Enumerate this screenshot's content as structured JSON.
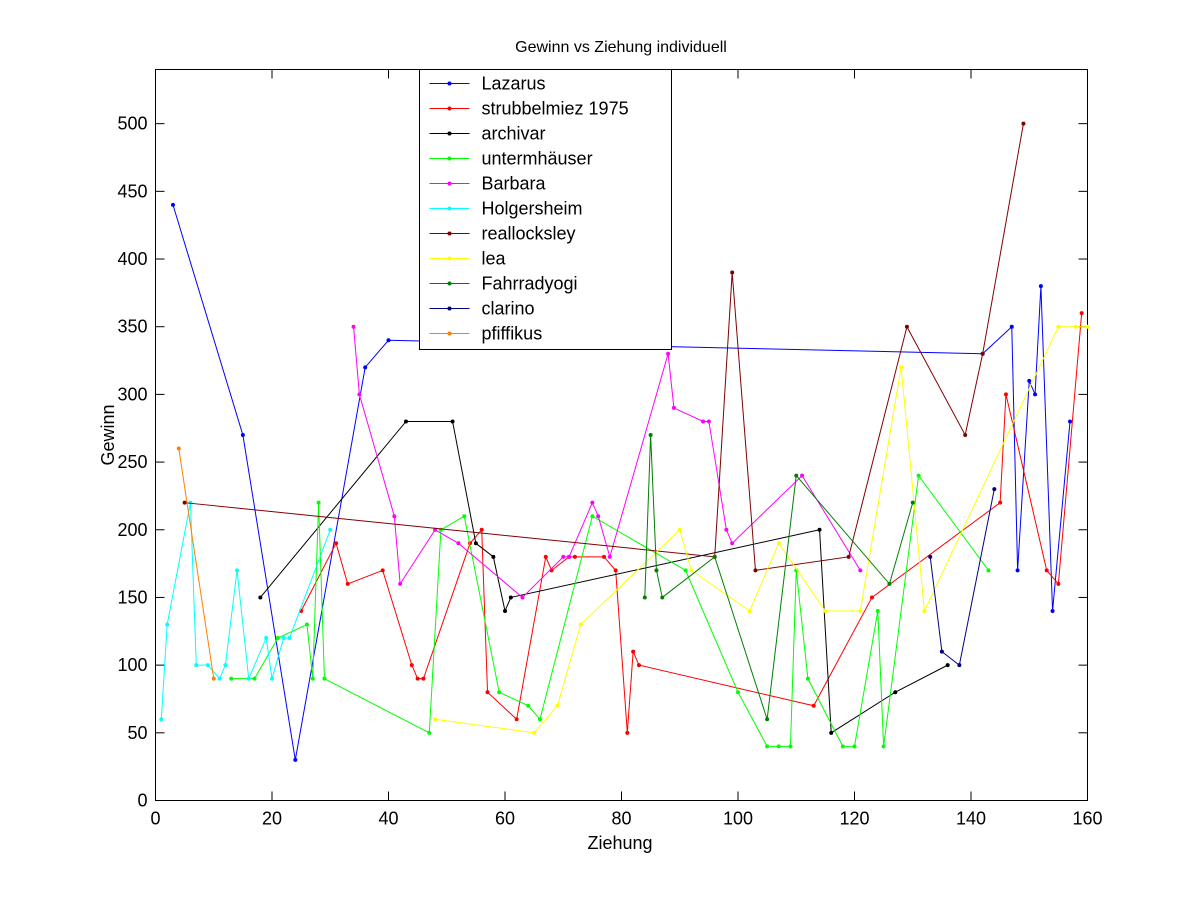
{
  "chart_data": {
    "type": "line",
    "title": "Gewinn vs Ziehung individuell",
    "xlabel": "Ziehung",
    "ylabel": "Gewinn",
    "xlim": [
      0,
      160
    ],
    "ylim": [
      0,
      540
    ],
    "xticks": [
      0,
      20,
      40,
      60,
      80,
      100,
      120,
      140,
      160
    ],
    "yticks": [
      0,
      50,
      100,
      150,
      200,
      250,
      300,
      350,
      400,
      450,
      500
    ],
    "grid": false,
    "legend_placement": "top-center",
    "series": [
      {
        "name": "Lazarus",
        "color": "#0000ff",
        "points": [
          [
            3,
            440
          ],
          [
            15,
            270
          ],
          [
            24,
            30
          ],
          [
            36,
            320
          ],
          [
            40,
            340
          ],
          [
            142,
            330
          ],
          [
            147,
            350
          ],
          [
            148,
            170
          ],
          [
            150,
            310
          ],
          [
            151,
            300
          ],
          [
            152,
            380
          ],
          [
            154,
            140
          ],
          [
            157,
            280
          ]
        ]
      },
      {
        "name": "strubbelmiez 1975",
        "color": "#ff0000",
        "points": [
          [
            25,
            140
          ],
          [
            31,
            190
          ],
          [
            33,
            160
          ],
          [
            39,
            170
          ],
          [
            44,
            100
          ],
          [
            45,
            90
          ],
          [
            46,
            90
          ],
          [
            54,
            190
          ],
          [
            56,
            200
          ],
          [
            57,
            80
          ],
          [
            62,
            60
          ],
          [
            67,
            180
          ],
          [
            68,
            170
          ],
          [
            71,
            180
          ],
          [
            72,
            180
          ],
          [
            77,
            180
          ],
          [
            79,
            170
          ],
          [
            81,
            50
          ],
          [
            82,
            110
          ],
          [
            83,
            100
          ],
          [
            113,
            70
          ],
          [
            123,
            150
          ],
          [
            145,
            220
          ],
          [
            146,
            300
          ],
          [
            153,
            170
          ],
          [
            155,
            160
          ],
          [
            159,
            360
          ]
        ]
      },
      {
        "name": "archivar",
        "color": "#000000",
        "points": [
          [
            18,
            150
          ],
          [
            43,
            280
          ],
          [
            51,
            280
          ],
          [
            55,
            190
          ],
          [
            58,
            180
          ],
          [
            60,
            140
          ],
          [
            61,
            150
          ],
          [
            114,
            200
          ],
          [
            116,
            50
          ],
          [
            127,
            80
          ],
          [
            136,
            100
          ]
        ]
      },
      {
        "name": "untermhäuser",
        "color": "#00ff00",
        "points": [
          [
            13,
            90
          ],
          [
            17,
            90
          ],
          [
            21,
            120
          ],
          [
            26,
            130
          ],
          [
            27,
            90
          ],
          [
            28,
            220
          ],
          [
            29,
            90
          ],
          [
            47,
            50
          ],
          [
            49,
            200
          ],
          [
            53,
            210
          ],
          [
            59,
            80
          ],
          [
            64,
            70
          ],
          [
            66,
            60
          ],
          [
            75,
            210
          ],
          [
            91,
            170
          ],
          [
            100,
            80
          ],
          [
            105,
            40
          ],
          [
            107,
            40
          ],
          [
            109,
            40
          ],
          [
            110,
            170
          ],
          [
            112,
            90
          ],
          [
            118,
            40
          ],
          [
            120,
            40
          ],
          [
            124,
            140
          ],
          [
            125,
            40
          ],
          [
            131,
            240
          ],
          [
            143,
            170
          ]
        ]
      },
      {
        "name": "Barbara",
        "color": "#ff00ff",
        "points": [
          [
            34,
            350
          ],
          [
            35,
            300
          ],
          [
            41,
            210
          ],
          [
            42,
            160
          ],
          [
            48,
            200
          ],
          [
            52,
            190
          ],
          [
            63,
            150
          ],
          [
            70,
            180
          ],
          [
            71,
            180
          ],
          [
            75,
            220
          ],
          [
            76,
            210
          ],
          [
            78,
            180
          ],
          [
            88,
            330
          ],
          [
            89,
            290
          ],
          [
            94,
            280
          ],
          [
            95,
            280
          ],
          [
            98,
            200
          ],
          [
            99,
            190
          ],
          [
            111,
            240
          ],
          [
            121,
            170
          ]
        ]
      },
      {
        "name": "Holgersheim",
        "color": "#00ffff",
        "points": [
          [
            1,
            60
          ],
          [
            2,
            130
          ],
          [
            6,
            220
          ],
          [
            7,
            100
          ],
          [
            9,
            100
          ],
          [
            11,
            90
          ],
          [
            12,
            100
          ],
          [
            14,
            170
          ],
          [
            16,
            90
          ],
          [
            19,
            120
          ],
          [
            20,
            90
          ],
          [
            22,
            120
          ],
          [
            23,
            120
          ],
          [
            30,
            200
          ]
        ]
      },
      {
        "name": "reallocksley",
        "color": "#800000",
        "points": [
          [
            5,
            220
          ],
          [
            96,
            180
          ],
          [
            99,
            390
          ],
          [
            103,
            170
          ],
          [
            119,
            180
          ],
          [
            129,
            350
          ],
          [
            139,
            270
          ],
          [
            142,
            330
          ],
          [
            149,
            500
          ]
        ]
      },
      {
        "name": "lea",
        "color": "#ffff00",
        "points": [
          [
            48,
            60
          ],
          [
            65,
            50
          ],
          [
            69,
            70
          ],
          [
            73,
            130
          ],
          [
            90,
            200
          ],
          [
            92,
            170
          ],
          [
            102,
            140
          ],
          [
            107,
            190
          ],
          [
            115,
            140
          ],
          [
            121,
            140
          ],
          [
            128,
            320
          ],
          [
            132,
            140
          ],
          [
            155,
            350
          ],
          [
            158,
            350
          ],
          [
            160,
            350
          ]
        ]
      },
      {
        "name": "Fahrradyogi",
        "color": "#008000",
        "points": [
          [
            84,
            150
          ],
          [
            85,
            270
          ],
          [
            86,
            170
          ],
          [
            87,
            150
          ],
          [
            96,
            180
          ],
          [
            105,
            60
          ],
          [
            110,
            240
          ],
          [
            126,
            160
          ],
          [
            130,
            220
          ]
        ]
      },
      {
        "name": "clarino",
        "color": "#000080",
        "points": [
          [
            133,
            180
          ],
          [
            135,
            110
          ],
          [
            138,
            100
          ],
          [
            144,
            230
          ]
        ]
      },
      {
        "name": "pfiffikus",
        "color": "#ff8000",
        "points": [
          [
            4,
            260
          ],
          [
            10,
            90
          ]
        ]
      }
    ]
  }
}
